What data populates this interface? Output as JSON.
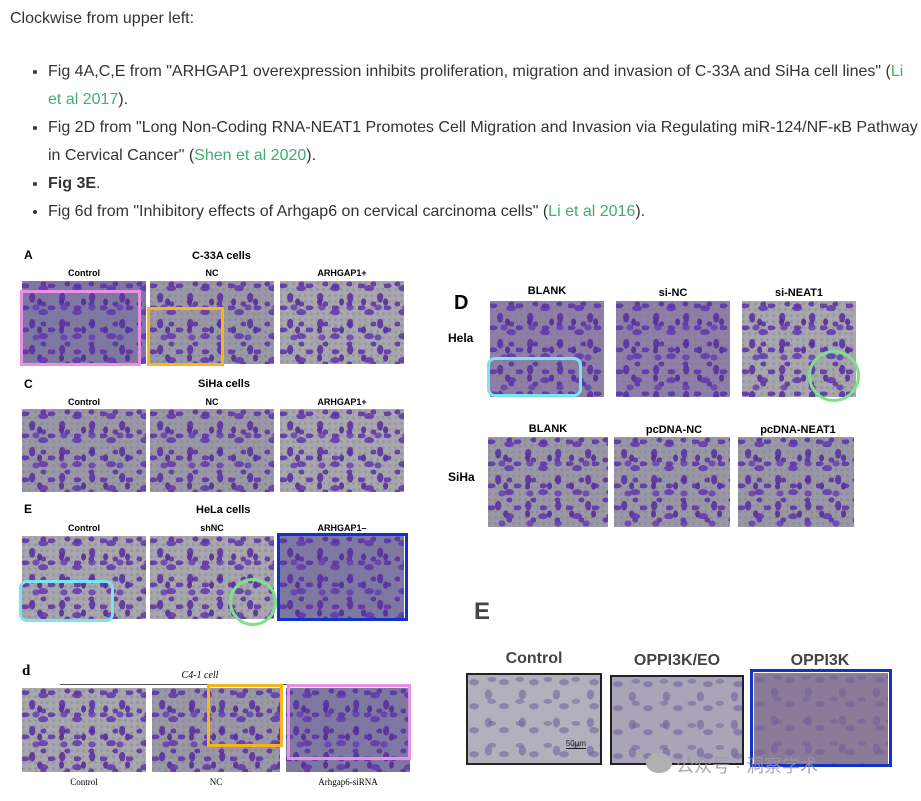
{
  "intro": "Clockwise from upper left:",
  "refs": [
    {
      "pre": "Fig 4A,C,E from \"ARHGAP1 overexpression inhibits proliferation, migration and invasion of C-33A and SiHa cell lines\" (",
      "link": "Li et al 2017",
      "post": ")."
    },
    {
      "pre": "Fig 2D from \"Long Non-Coding RNA-NEAT1 Promotes Cell Migration and Invasion via Regulating miR-124/NF-κB Pathway in Cervical Cancer\" (",
      "link": "Shen et al 2020",
      "post": ")."
    },
    {
      "bold": "Fig 3E",
      "post": "."
    },
    {
      "pre": "Fig 6d from \"Inhibitory effects of Arhgap6 on cervical carcinoma cells\" (",
      "link": "Li et al 2016",
      "post": ")."
    }
  ],
  "fig_left": {
    "a_label": "A",
    "a_title": "C-33A cells",
    "a_cols": [
      "Control",
      "NC",
      "ARHGAP1+"
    ],
    "c_label": "C",
    "c_title": "SiHa cells",
    "c_cols": [
      "Control",
      "NC",
      "ARHGAP1+"
    ],
    "e_label": "E",
    "e_title": "HeLa cells",
    "e_cols": [
      "Control",
      "shNC",
      "ARHGAP1–"
    ]
  },
  "fig_right": {
    "label": "D",
    "row1": "Hela",
    "row2": "SiHa",
    "cols1": [
      "BLANK",
      "si-NC",
      "si-NEAT1"
    ],
    "cols2": [
      "BLANK",
      "pcDNA-NC",
      "pcDNA-NEAT1"
    ]
  },
  "fig_bottom_left": {
    "label": "d",
    "title": "C4-1  cell",
    "cols": [
      "Control",
      "NC",
      "Arhgap6-siRNA"
    ]
  },
  "fig_bottom_right": {
    "label": "E",
    "cols": [
      "Control",
      "OPPI3K/EO",
      "OPPI3K"
    ],
    "scale": "50μm"
  },
  "watermark": "公众号 · 洞察学术",
  "colors": {
    "link": "#3fae6f",
    "pink": "#e98fe7",
    "orange": "#f7b41c",
    "cyan": "#7ce3f0",
    "green": "#7fe08c",
    "blue": "#1233c8"
  }
}
